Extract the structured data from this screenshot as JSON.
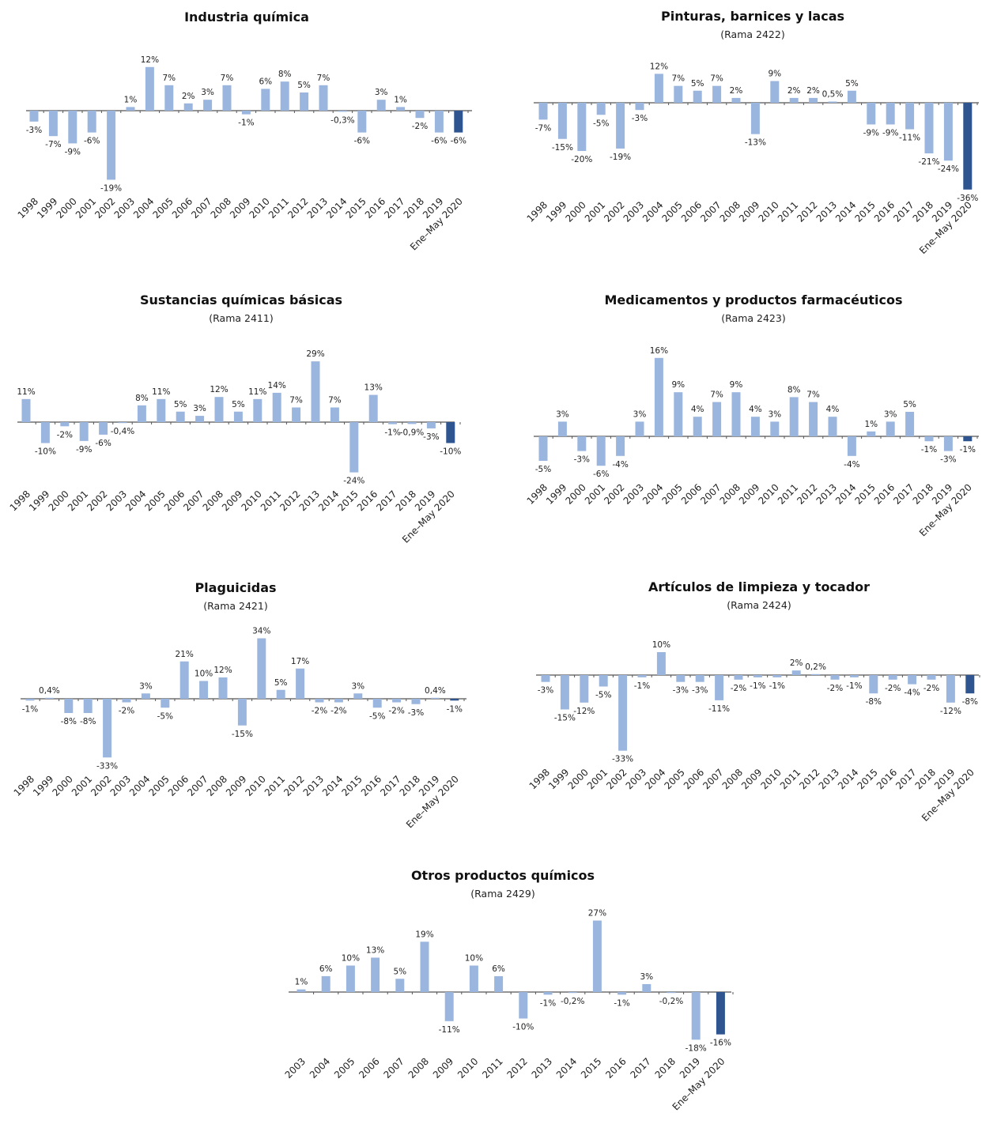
{
  "colors": {
    "bar": "#9bb6de",
    "highlight": "#2e5590",
    "axis": "#555555"
  },
  "chart_data": [
    {
      "type": "bar",
      "title": "Industria química",
      "subtitle": "",
      "categories": [
        "1998",
        "1999",
        "2000",
        "2001",
        "2002",
        "2003",
        "2004",
        "2005",
        "2006",
        "2007",
        "2008",
        "2009",
        "2010",
        "2011",
        "2012",
        "2013",
        "2014",
        "2015",
        "2016",
        "2017",
        "2018",
        "2019",
        "Ene–May 2020"
      ],
      "values": [
        -3,
        -7,
        -9,
        -6,
        -19,
        1,
        12,
        7,
        2,
        3,
        7,
        -1,
        6,
        8,
        5,
        7,
        -0.3,
        -6,
        3,
        1,
        -2,
        -6,
        -6
      ],
      "labels": [
        "-3%",
        "-7%",
        "-9%",
        "-6%",
        "-19%",
        "1%",
        "12%",
        "7%",
        "2%",
        "3%",
        "7%",
        "-1%",
        "6%",
        "8%",
        "5%",
        "7%",
        "-0,3%",
        "-6%",
        "3%",
        "1%",
        "-2%",
        "-6%",
        "-6%"
      ]
    },
    {
      "type": "bar",
      "title": "Pinturas, barnices y lacas",
      "subtitle": "(Rama 2422)",
      "categories": [
        "1998",
        "1999",
        "2000",
        "2001",
        "2002",
        "2003",
        "2004",
        "2005",
        "2006",
        "2007",
        "2008",
        "2009",
        "2010",
        "2011",
        "2012",
        "2013",
        "2014",
        "2015",
        "2016",
        "2017",
        "2018",
        "2019",
        "Ene–May 2020"
      ],
      "values": [
        -7,
        -15,
        -20,
        -5,
        -19,
        -3,
        12,
        7,
        5,
        7,
        2,
        -13,
        9,
        2,
        2,
        0.5,
        5,
        -9,
        -9,
        -11,
        -21,
        -24,
        -36
      ],
      "labels": [
        "-7%",
        "-15%",
        "-20%",
        "-5%",
        "-19%",
        "-3%",
        "12%",
        "7%",
        "5%",
        "7%",
        "2%",
        "-13%",
        "9%",
        "2%",
        "2%",
        "0,5%",
        "5%",
        "-9%",
        "-9%",
        "-11%",
        "-21%",
        "-24%",
        "-36%"
      ]
    },
    {
      "type": "bar",
      "title": "Sustancias químicas básicas",
      "subtitle": "(Rama 2411)",
      "categories": [
        "1998",
        "1999",
        "2000",
        "2001",
        "2002",
        "2003",
        "2004",
        "2005",
        "2006",
        "2007",
        "2008",
        "2009",
        "2010",
        "2011",
        "2012",
        "2013",
        "2014",
        "2015",
        "2016",
        "2017",
        "2018",
        "2019",
        "Ene–May 2020"
      ],
      "values": [
        11,
        -10,
        -2,
        -9,
        -6,
        -0.4,
        8,
        11,
        5,
        3,
        12,
        5,
        11,
        14,
        7,
        29,
        7,
        -24,
        13,
        -1,
        -0.9,
        -3,
        -10
      ],
      "labels": [
        "11%",
        "-10%",
        "-2%",
        "-9%",
        "-6%",
        "-0,4%",
        "8%",
        "11%",
        "5%",
        "3%",
        "12%",
        "5%",
        "11%",
        "14%",
        "7%",
        "29%",
        "7%",
        "-24%",
        "13%",
        "-1%",
        "-0,9%",
        "-3%",
        "-10%"
      ]
    },
    {
      "type": "bar",
      "title": "Medicamentos y productos farmacéuticos",
      "subtitle": "(Rama 2423)",
      "categories": [
        "1998",
        "1999",
        "2000",
        "2001",
        "2002",
        "2003",
        "2004",
        "2005",
        "2006",
        "2007",
        "2008",
        "2009",
        "2010",
        "2011",
        "2012",
        "2013",
        "2014",
        "2015",
        "2016",
        "2017",
        "2018",
        "2019",
        "Ene–May 2020"
      ],
      "values": [
        -5,
        3,
        -3,
        -6,
        -4,
        3,
        16,
        9,
        4,
        7,
        9,
        4,
        3,
        8,
        7,
        4,
        -4,
        1,
        3,
        5,
        -1,
        -3,
        -1
      ],
      "labels": [
        "-5%",
        "3%",
        "-3%",
        "-6%",
        "-4%",
        "3%",
        "16%",
        "9%",
        "4%",
        "7%",
        "9%",
        "4%",
        "3%",
        "8%",
        "7%",
        "4%",
        "-4%",
        "1%",
        "3%",
        "5%",
        "-1%",
        "-3%",
        "-1%"
      ]
    },
    {
      "type": "bar",
      "title": "Plaguicidas",
      "subtitle": "(Rama 2421)",
      "categories": [
        "1998",
        "1999",
        "2000",
        "2001",
        "2002",
        "2003",
        "2004",
        "2005",
        "2006",
        "2007",
        "2008",
        "2009",
        "2010",
        "2011",
        "2012",
        "2013",
        "2014",
        "2015",
        "2016",
        "2017",
        "2018",
        "2019",
        "Ene–May 2020"
      ],
      "values": [
        -1,
        0.4,
        -8,
        -8,
        -33,
        -2,
        3,
        -5,
        21,
        10,
        12,
        -15,
        34,
        5,
        17,
        -2,
        -2,
        3,
        -5,
        -2,
        -3,
        0.4,
        -1
      ],
      "labels": [
        "-1%",
        "0,4%",
        "-8%",
        "-8%",
        "-33%",
        "-2%",
        "3%",
        "-5%",
        "21%",
        "10%",
        "12%",
        "-15%",
        "34%",
        "5%",
        "17%",
        "-2%",
        "-2%",
        "3%",
        "-5%",
        "-2%",
        "-3%",
        "0,4%",
        "-1%"
      ]
    },
    {
      "type": "bar",
      "title": "Artículos de limpieza y tocador",
      "subtitle": "(Rama 2424)",
      "categories": [
        "1998",
        "1999",
        "2000",
        "2001",
        "2002",
        "2003",
        "2004",
        "2005",
        "2006",
        "2007",
        "2008",
        "2009",
        "2010",
        "2011",
        "2012",
        "2013",
        "2014",
        "2015",
        "2016",
        "2017",
        "2018",
        "2019",
        "Ene–May 2020"
      ],
      "values": [
        -3,
        -15,
        -12,
        -5,
        -33,
        -1,
        10,
        -3,
        -3,
        -11,
        -2,
        -1,
        -1,
        2,
        0.2,
        -2,
        -1,
        -8,
        -2,
        -4,
        -2,
        -12,
        -8
      ],
      "labels": [
        "-3%",
        "-15%",
        "-12%",
        "-5%",
        "-33%",
        "-1%",
        "10%",
        "-3%",
        "-3%",
        "-11%",
        "-2%",
        "-1%",
        "-1%",
        "2%",
        "0,2%",
        "-2%",
        "-1%",
        "-8%",
        "-2%",
        "-4%",
        "-2%",
        "-12%",
        "-8%"
      ]
    },
    {
      "type": "bar",
      "title": "Otros productos químicos",
      "subtitle": "(Rama 2429)",
      "categories": [
        "2003",
        "2004",
        "2005",
        "2006",
        "2007",
        "2008",
        "2009",
        "2010",
        "2011",
        "2012",
        "2013",
        "2014",
        "2015",
        "2016",
        "2017",
        "2018",
        "2019",
        "Ene–May 2020"
      ],
      "values": [
        1,
        6,
        10,
        13,
        5,
        19,
        -11,
        10,
        6,
        -10,
        -1,
        -0.2,
        27,
        -1,
        3,
        -0.2,
        -18,
        -16
      ],
      "labels": [
        "1%",
        "6%",
        "10%",
        "13%",
        "5%",
        "19%",
        "-11%",
        "10%",
        "6%",
        "-10%",
        "-1%",
        "-0,2%",
        "27%",
        "-1%",
        "3%",
        "-0,2%",
        "-18%",
        "-16%"
      ]
    }
  ]
}
